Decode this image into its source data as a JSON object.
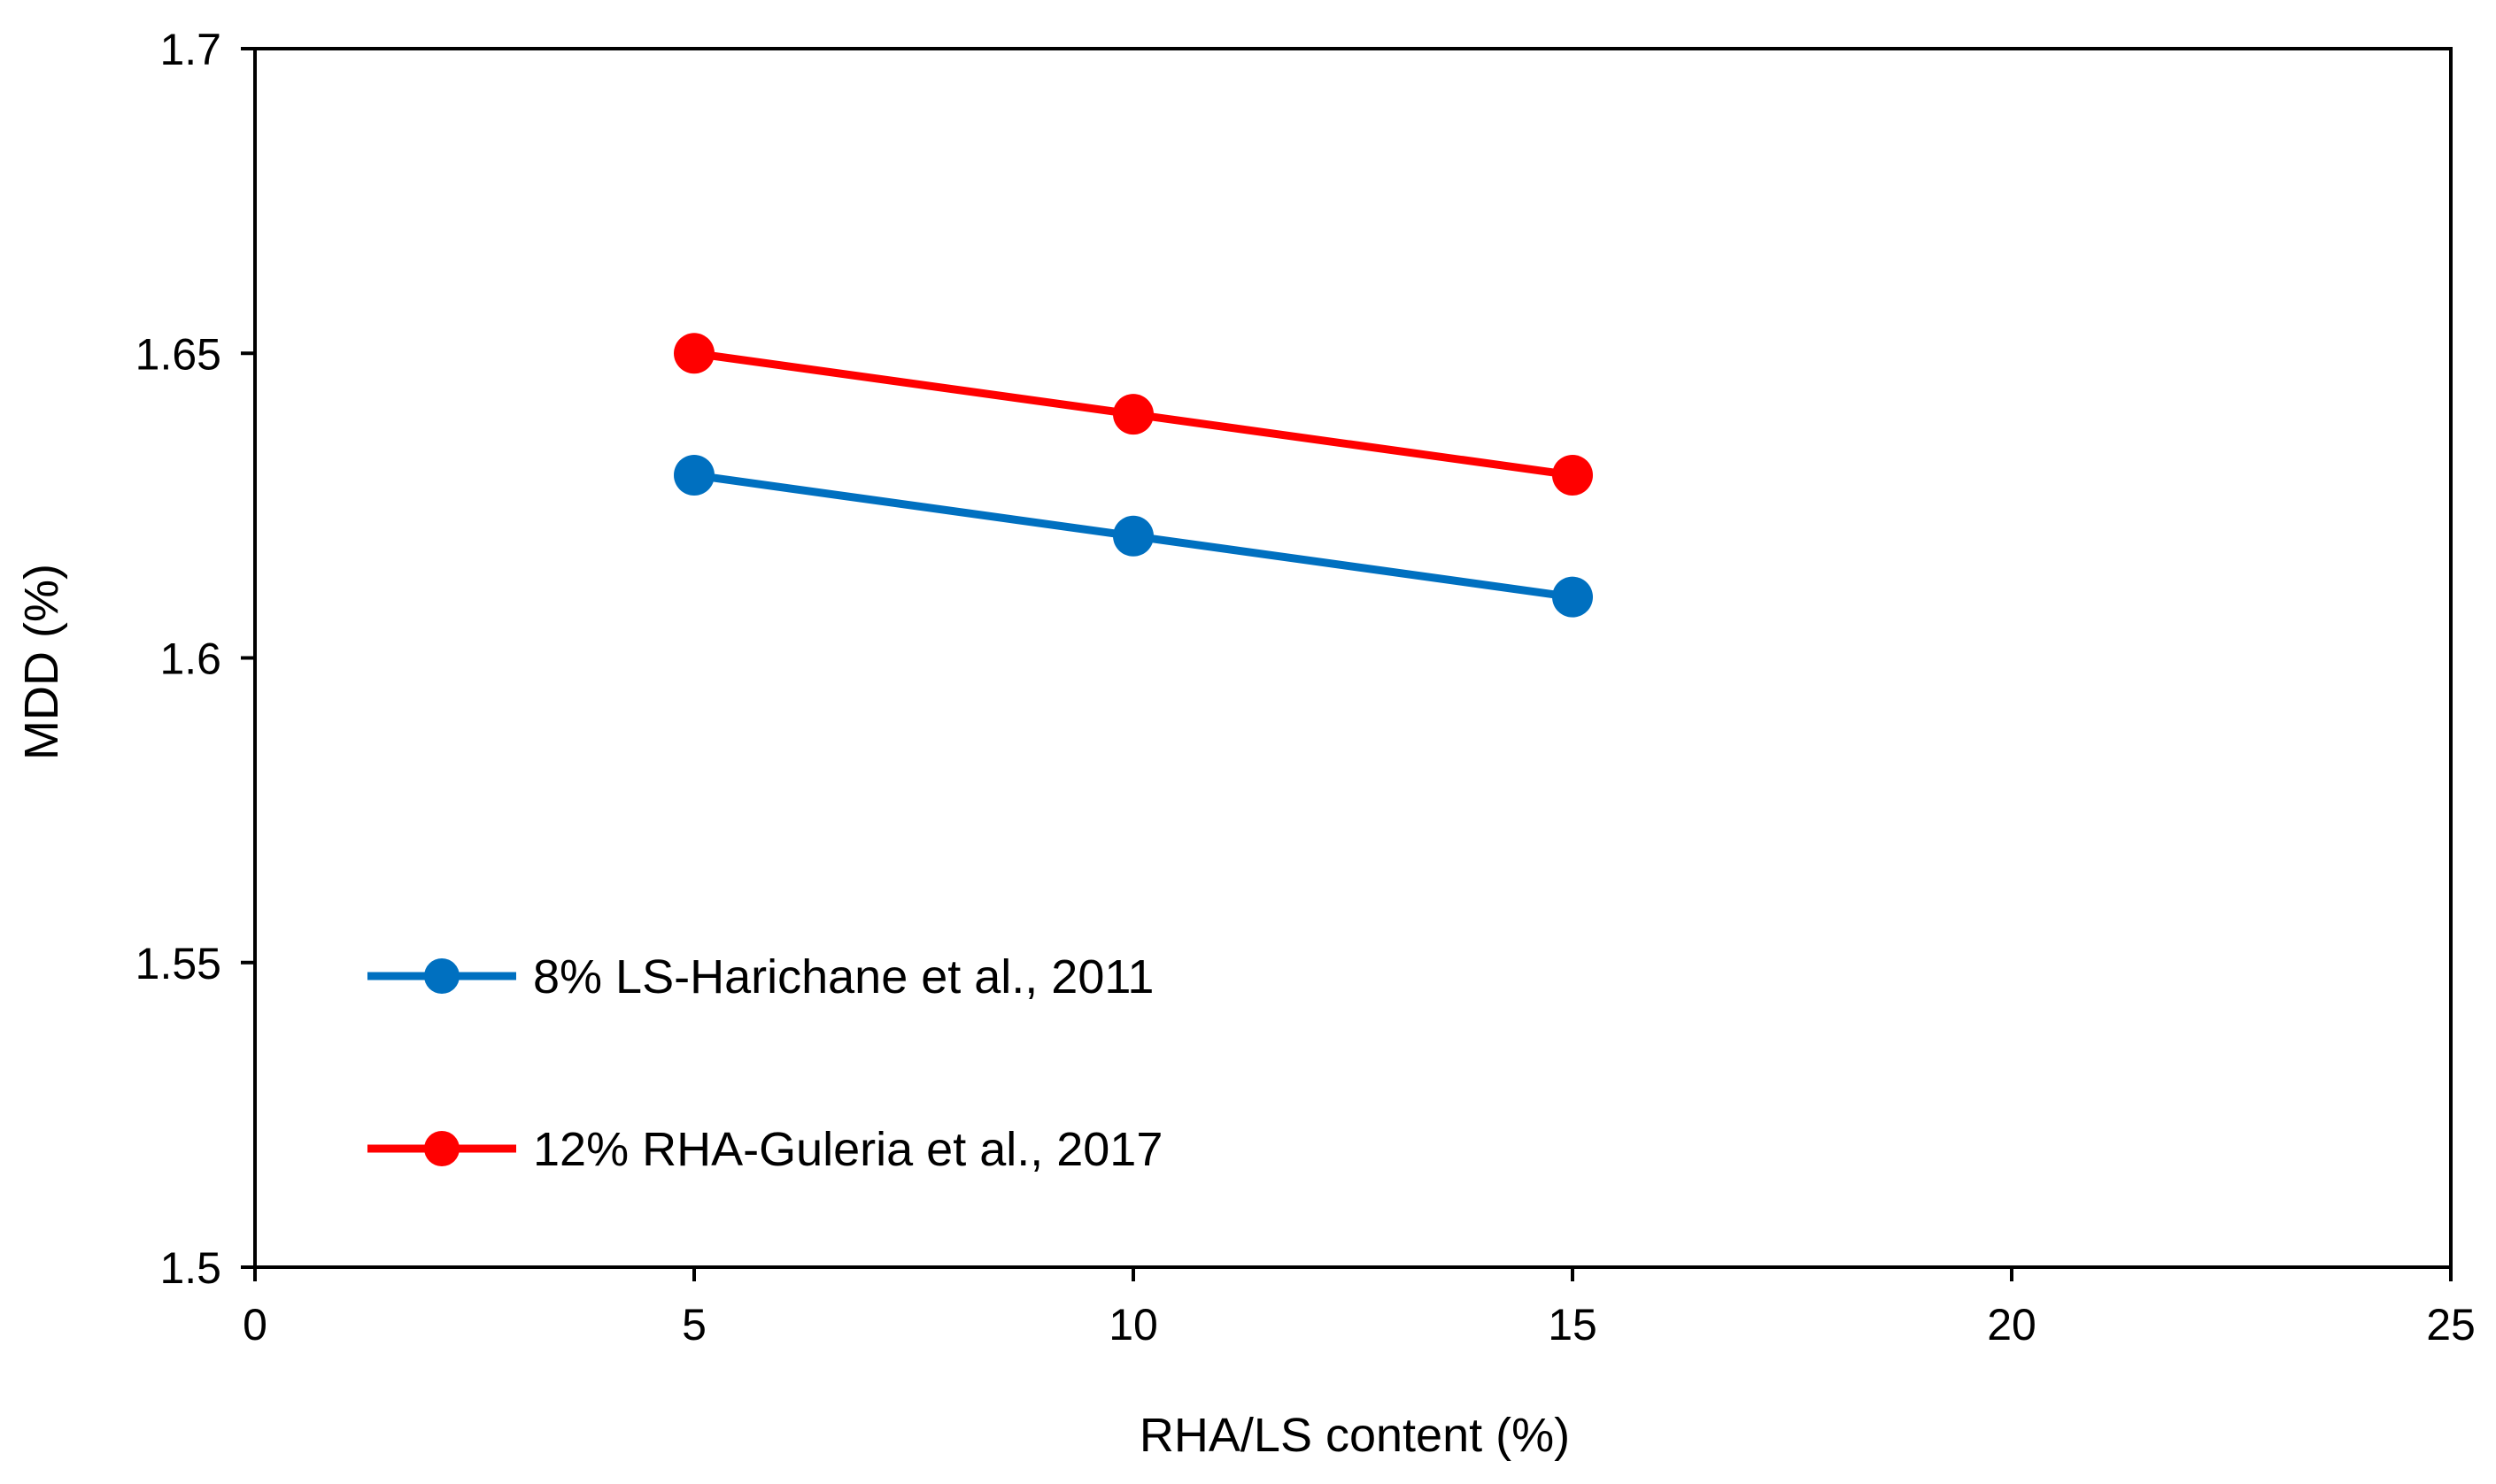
{
  "chart_data": {
    "type": "line",
    "xlabel": "RHA/LS content (%)",
    "ylabel": "MDD (%)",
    "xlim": [
      0,
      25
    ],
    "ylim": [
      1.5,
      1.7
    ],
    "x_ticks": [
      0,
      5,
      10,
      15,
      20,
      25
    ],
    "y_ticks": [
      1.5,
      1.55,
      1.6,
      1.65,
      1.7
    ],
    "x_tick_labels": [
      "0",
      "5",
      "10",
      "15",
      "20",
      "25"
    ],
    "y_tick_labels": [
      "1.5",
      "1.55",
      "1.6",
      "1.65",
      "1.7"
    ],
    "grid": false,
    "legend_position": "bottom-left",
    "series": [
      {
        "name": "8% LS-Harichane et al., 2011",
        "color": "#0070C0",
        "x": [
          5,
          10,
          15
        ],
        "y": [
          1.63,
          1.62,
          1.61
        ]
      },
      {
        "name": "12% RHA-Guleria et al., 2017",
        "color": "#FF0000",
        "x": [
          5,
          10,
          15
        ],
        "y": [
          1.65,
          1.64,
          1.63
        ]
      }
    ]
  }
}
